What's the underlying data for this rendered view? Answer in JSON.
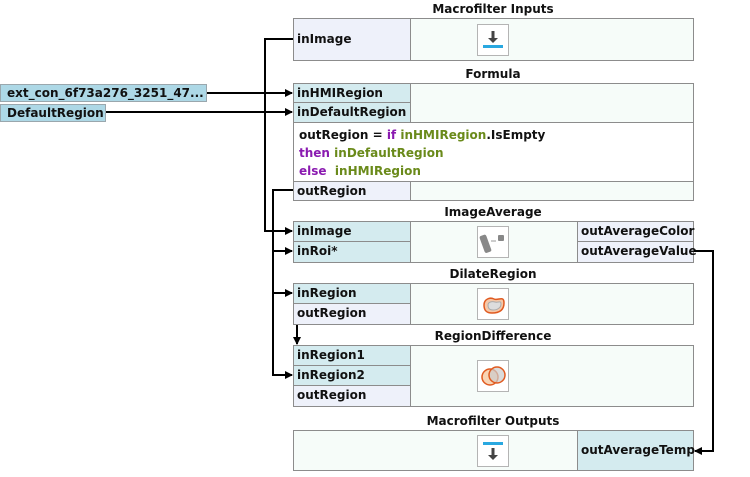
{
  "external_inputs": [
    {
      "label": "ext_con_6f73a276_3251_47..."
    },
    {
      "label": "DefaultRegion"
    }
  ],
  "macrofilter_inputs": {
    "title": "Macrofilter Inputs",
    "outputs": [
      "inImage"
    ],
    "icon": "input-arrow-icon"
  },
  "formula": {
    "title": "Formula",
    "inputs": [
      "inHMIRegion",
      "inDefaultRegion"
    ],
    "code": {
      "line1_lhs": "outRegion = ",
      "line1_kw": "if",
      "line1_var": "inHMIRegion",
      "line1_rest": ".IsEmpty",
      "line2_kw": "then",
      "line2_var": "inDefaultRegion",
      "line3_kw": "else",
      "line3_var": "inHMIRegion"
    },
    "outputs": [
      "outRegion"
    ]
  },
  "image_average": {
    "title": "ImageAverage",
    "inputs": [
      "inImage",
      "inRoi*"
    ],
    "outputs": [
      "outAverageColor",
      "outAverageValue"
    ],
    "icon": "image-average-icon"
  },
  "dilate_region": {
    "title": "DilateRegion",
    "inputs": [
      "inRegion"
    ],
    "outputs": [
      "outRegion"
    ],
    "icon": "dilate-region-icon"
  },
  "region_difference": {
    "title": "RegionDifference",
    "inputs": [
      "inRegion1",
      "inRegion2"
    ],
    "outputs": [
      "outRegion"
    ],
    "icon": "region-difference-icon"
  },
  "macrofilter_outputs": {
    "title": "Macrofilter Outputs",
    "inputs": [
      "outAverageTemp"
    ],
    "icon": "output-arrow-icon"
  },
  "colors": {
    "input_cell": "#d4ebef",
    "output_cell": "#eef1fa",
    "block_bg": "#f6fcf9",
    "keyword": "#8a1ab0",
    "variable": "#6a8a1a",
    "accent": "#29a8e0"
  }
}
